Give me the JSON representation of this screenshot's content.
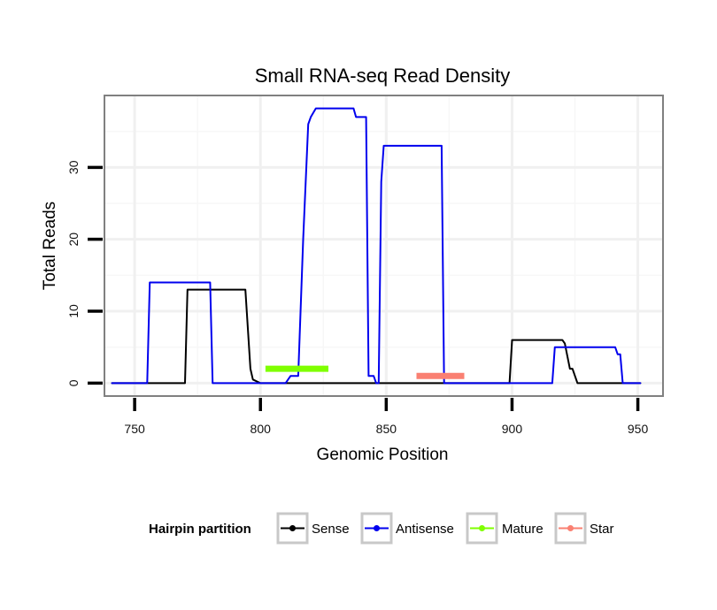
{
  "chart_data": {
    "type": "line",
    "title": "Small RNA-seq Read Density",
    "xlabel": "Genomic Position",
    "ylabel": "Total Reads",
    "xlim": [
      738,
      960
    ],
    "ylim": [
      -1.8,
      40
    ],
    "xticks": [
      750,
      800,
      850,
      900,
      950
    ],
    "yticks": [
      0,
      10,
      20,
      30
    ],
    "grid": true,
    "legend": {
      "title": "Hairpin partition",
      "position": "bottom",
      "entries": [
        {
          "label": "Sense",
          "color": "#000000"
        },
        {
          "label": "Antisense",
          "color": "#0000ee"
        },
        {
          "label": "Mature",
          "color": "#7fff00"
        },
        {
          "label": "Star",
          "color": "#fa8072"
        }
      ]
    },
    "series": [
      {
        "name": "Sense",
        "color": "#000000",
        "width": 2,
        "x": [
          741,
          770,
          771,
          794,
          796,
          797,
          800,
          801,
          836,
          837,
          880,
          881,
          899,
          900,
          920,
          921,
          923,
          924,
          926,
          927,
          951
        ],
        "y": [
          0,
          0,
          13,
          13,
          2,
          0.5,
          0,
          0,
          0,
          0,
          0,
          0,
          0,
          6,
          6,
          5.5,
          2,
          2,
          0,
          0,
          0
        ]
      },
      {
        "name": "Antisense",
        "color": "#0000ee",
        "width": 2,
        "x": [
          741,
          755,
          756,
          780,
          781,
          810,
          812,
          815,
          817,
          819,
          820,
          822,
          837,
          838,
          842,
          843,
          845,
          846,
          847,
          848,
          849,
          872,
          873,
          916,
          917,
          941,
          942,
          943,
          944,
          951
        ],
        "y": [
          0,
          0,
          14,
          14,
          0,
          0,
          1,
          1,
          20,
          36,
          37,
          38.2,
          38.2,
          37,
          37,
          1,
          1,
          0,
          0,
          28,
          33,
          33,
          0,
          0,
          5,
          5,
          4,
          4,
          0,
          0
        ]
      },
      {
        "name": "Mature",
        "color": "#7fff00",
        "width": 7,
        "x": [
          802,
          827
        ],
        "y": [
          2,
          2
        ]
      },
      {
        "name": "Star",
        "color": "#fa8072",
        "width": 7,
        "x": [
          862,
          881
        ],
        "y": [
          1,
          1
        ]
      }
    ]
  }
}
